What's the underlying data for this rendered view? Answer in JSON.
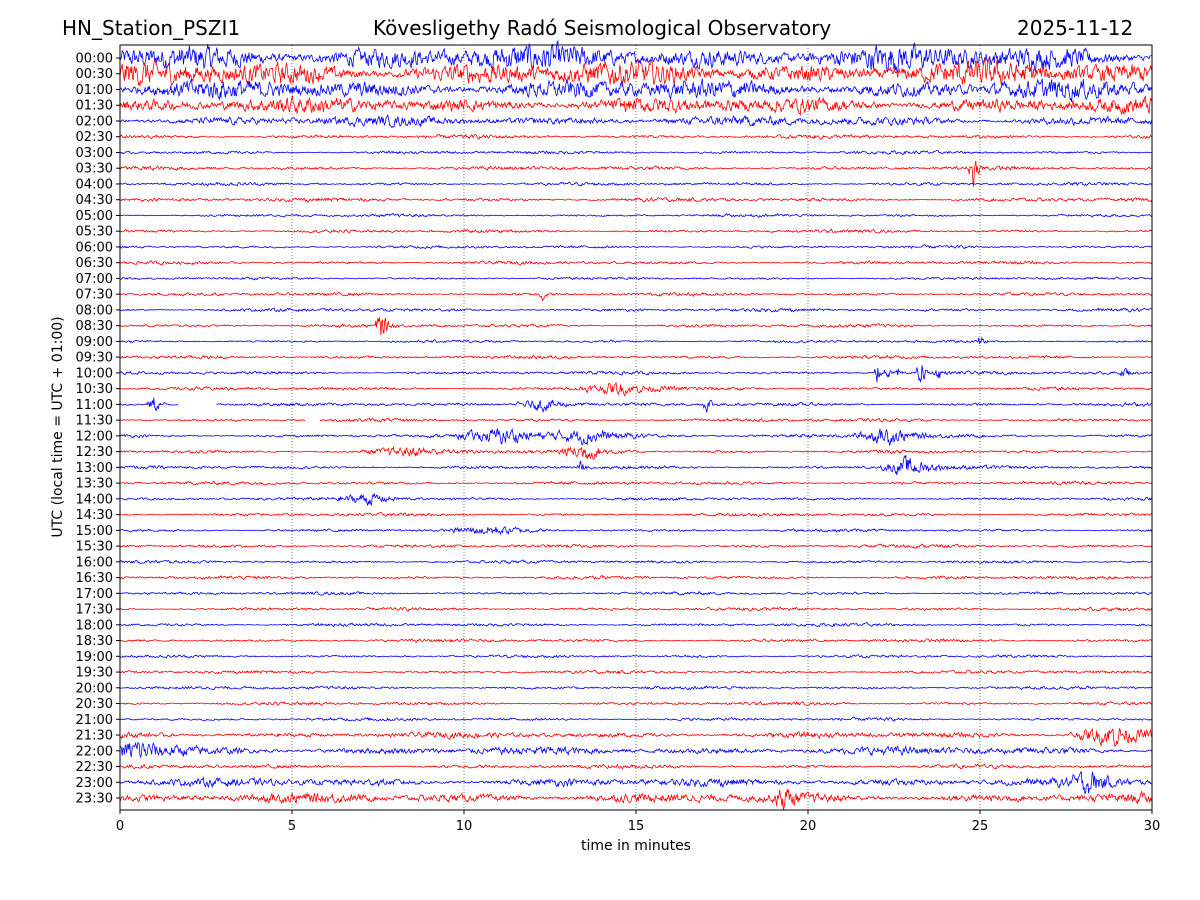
{
  "header": {
    "station": "HN_Station_PSZI1",
    "observatory": "Kövesligethy Radó Seismological Observatory",
    "date": "2025-11-12"
  },
  "chart_data": {
    "type": "line",
    "title": "Kövesligethy Radó Seismological Observatory",
    "xlabel": "time in minutes",
    "ylabel": "UTC (local time = UTC + 01:00)",
    "xlim": [
      0,
      30
    ],
    "x_ticks": [
      "0",
      "5",
      "10",
      "15",
      "20",
      "25",
      "30"
    ],
    "grid": "vertical dotted at 5-minute ticks",
    "colors": [
      "#0000ff",
      "#ff0000"
    ],
    "rows": [
      "00:00",
      "00:30",
      "01:00",
      "01:30",
      "02:00",
      "02:30",
      "03:00",
      "03:30",
      "04:00",
      "04:30",
      "05:00",
      "05:30",
      "06:00",
      "06:30",
      "07:00",
      "07:30",
      "08:00",
      "08:30",
      "09:00",
      "09:30",
      "10:00",
      "10:30",
      "11:00",
      "11:30",
      "12:00",
      "12:30",
      "13:00",
      "13:30",
      "14:00",
      "14:30",
      "15:00",
      "15:30",
      "16:00",
      "16:30",
      "17:00",
      "17:30",
      "18:00",
      "18:30",
      "19:00",
      "19:30",
      "20:00",
      "20:30",
      "21:00",
      "21:30",
      "22:00",
      "22:30",
      "23:00",
      "23:30"
    ],
    "noise_level": [
      0.8,
      0.75,
      0.6,
      0.5,
      0.3,
      0.12,
      0.1,
      0.12,
      0.1,
      0.12,
      0.09,
      0.1,
      0.09,
      0.1,
      0.08,
      0.1,
      0.1,
      0.1,
      0.08,
      0.1,
      0.1,
      0.1,
      0.1,
      0.1,
      0.1,
      0.1,
      0.1,
      0.1,
      0.09,
      0.1,
      0.09,
      0.1,
      0.09,
      0.1,
      0.09,
      0.1,
      0.1,
      0.1,
      0.09,
      0.1,
      0.1,
      0.1,
      0.1,
      0.18,
      0.25,
      0.12,
      0.25,
      0.3
    ],
    "events": [
      {
        "row": 7,
        "minute": 24.8,
        "amp": 1.0,
        "dur": 0.15
      },
      {
        "row": 15,
        "minute": 12.3,
        "amp": 0.4,
        "dur": 0.1
      },
      {
        "row": 17,
        "minute": 7.6,
        "amp": 0.9,
        "dur": 0.2
      },
      {
        "row": 18,
        "minute": 25.0,
        "amp": 0.5,
        "dur": 0.1
      },
      {
        "row": 20,
        "minute": 22.0,
        "amp": 0.9,
        "dur": 0.1
      },
      {
        "row": 20,
        "minute": 22.3,
        "amp": 0.6,
        "dur": 0.1
      },
      {
        "row": 20,
        "minute": 22.6,
        "amp": 0.5,
        "dur": 0.1
      },
      {
        "row": 20,
        "minute": 23.3,
        "amp": 0.8,
        "dur": 0.15
      },
      {
        "row": 20,
        "minute": 23.8,
        "amp": 0.5,
        "dur": 0.1
      },
      {
        "row": 20,
        "minute": 29.2,
        "amp": 0.5,
        "dur": 0.1
      },
      {
        "row": 21,
        "minute": 14.5,
        "amp": 0.35,
        "dur": 1.2
      },
      {
        "row": 22,
        "minute": 1.0,
        "amp": 0.6,
        "dur": 0.2
      },
      {
        "row": 22,
        "minute": 12.3,
        "amp": 0.4,
        "dur": 0.8
      },
      {
        "row": 22,
        "minute": 17.1,
        "amp": 0.5,
        "dur": 0.15
      },
      {
        "row": 24,
        "minute": 11.2,
        "amp": 0.45,
        "dur": 1.4
      },
      {
        "row": 24,
        "minute": 13.6,
        "amp": 0.4,
        "dur": 1.2
      },
      {
        "row": 24,
        "minute": 22.3,
        "amp": 0.5,
        "dur": 1.0
      },
      {
        "row": 25,
        "minute": 13.5,
        "amp": 0.5,
        "dur": 0.8
      },
      {
        "row": 25,
        "minute": 8.5,
        "amp": 0.25,
        "dur": 1.5
      },
      {
        "row": 26,
        "minute": 22.9,
        "amp": 0.6,
        "dur": 0.8
      },
      {
        "row": 26,
        "minute": 13.4,
        "amp": 0.5,
        "dur": 0.1
      },
      {
        "row": 28,
        "minute": 7.2,
        "amp": 0.35,
        "dur": 0.9
      },
      {
        "row": 30,
        "minute": 10.8,
        "amp": 0.25,
        "dur": 1.2
      },
      {
        "row": 44,
        "minute": 0.5,
        "amp": 0.6,
        "dur": 1.0
      },
      {
        "row": 43,
        "minute": 28.8,
        "amp": 0.6,
        "dur": 1.2
      },
      {
        "row": 46,
        "minute": 28.2,
        "amp": 0.6,
        "dur": 0.6
      },
      {
        "row": 47,
        "minute": 19.3,
        "amp": 0.7,
        "dur": 0.3
      }
    ],
    "gaps": [
      {
        "row": 22,
        "from": 1.7,
        "to": 2.8
      },
      {
        "row": 23,
        "from": 5.4,
        "to": 5.8
      }
    ]
  }
}
